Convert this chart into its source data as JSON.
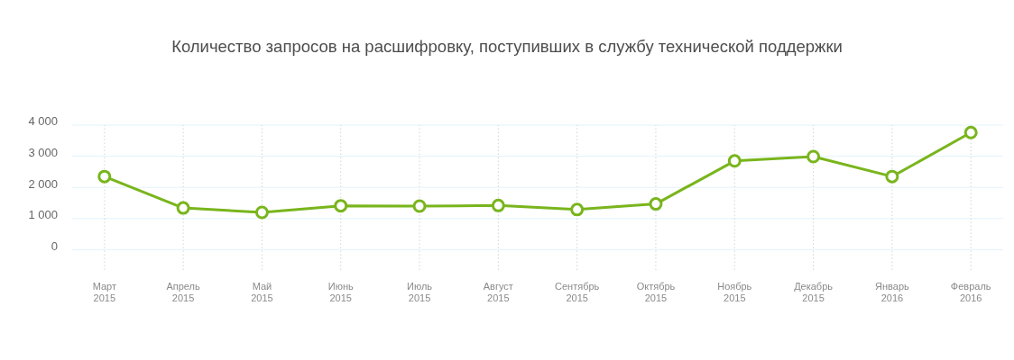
{
  "chart_data": {
    "type": "line",
    "title": "Количество запросов на расшифровку, поступивших в службу технической поддержки",
    "categories": [
      "Март 2015",
      "Апрель 2015",
      "Май 2015",
      "Июнь 2015",
      "Июль 2015",
      "Август 2015",
      "Сентябрь 2015",
      "Октябрь 2015",
      "Ноябрь 2015",
      "Декабрь 2015",
      "Январь 2016",
      "Февраль 2016"
    ],
    "series": [
      {
        "color": "#79b51c",
        "values": [
          2350,
          1340,
          1200,
          1410,
          1400,
          1420,
          1290,
          1470,
          2850,
          2990,
          2350,
          3760
        ]
      }
    ],
    "ylim": [
      -650,
      4000
    ],
    "yticks": [
      0,
      {
        "value": 1000,
        "label": "1 000"
      },
      {
        "value": 2000,
        "label": "2 000"
      },
      {
        "value": 3000,
        "label": "3 000"
      },
      {
        "value": 4000,
        "label": "4 000"
      }
    ],
    "grid": true,
    "marker": "circle",
    "line_style": "solid"
  }
}
